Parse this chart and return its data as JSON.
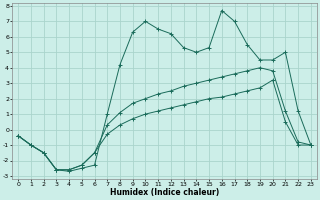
{
  "xlabel": "Humidex (Indice chaleur)",
  "bg_color": "#cceee8",
  "grid_color": "#aad4cc",
  "line_color": "#1a6b5a",
  "xlim": [
    -0.5,
    23.5
  ],
  "ylim": [
    -3.2,
    8.2
  ],
  "xticks": [
    0,
    1,
    2,
    3,
    4,
    5,
    6,
    7,
    8,
    9,
    10,
    11,
    12,
    13,
    14,
    15,
    16,
    17,
    18,
    19,
    20,
    21,
    22,
    23
  ],
  "yticks": [
    -3,
    -2,
    -1,
    0,
    1,
    2,
    3,
    4,
    5,
    6,
    7,
    8
  ],
  "s1_x": [
    0,
    1,
    2,
    3,
    4,
    5,
    6,
    7,
    8,
    9,
    10,
    11,
    12,
    13,
    14,
    15,
    16,
    17,
    18,
    19,
    20,
    21,
    22,
    23
  ],
  "s1_y": [
    -0.4,
    -1.0,
    -1.5,
    -2.6,
    -2.7,
    -2.5,
    -2.3,
    1.0,
    4.2,
    6.3,
    7.0,
    6.5,
    6.2,
    5.3,
    5.0,
    5.3,
    7.7,
    7.0,
    5.5,
    4.5,
    4.5,
    5.0,
    1.2,
    -1.0
  ],
  "s2_x": [
    0,
    1,
    2,
    3,
    4,
    5,
    6,
    7,
    8,
    9,
    10,
    11,
    12,
    13,
    14,
    15,
    16,
    17,
    18,
    19,
    20,
    21,
    22,
    23
  ],
  "s2_y": [
    -0.4,
    -1.0,
    -1.5,
    -2.6,
    -2.6,
    -2.3,
    -1.5,
    0.3,
    1.1,
    1.7,
    2.0,
    2.3,
    2.5,
    2.8,
    3.0,
    3.2,
    3.4,
    3.6,
    3.8,
    4.0,
    3.8,
    1.2,
    -0.8,
    -1.0
  ],
  "s3_x": [
    0,
    1,
    2,
    3,
    4,
    5,
    6,
    7,
    8,
    9,
    10,
    11,
    12,
    13,
    14,
    15,
    16,
    17,
    18,
    19,
    20,
    21,
    22,
    23
  ],
  "s3_y": [
    -0.4,
    -1.0,
    -1.5,
    -2.6,
    -2.6,
    -2.3,
    -1.5,
    -0.3,
    0.3,
    0.7,
    1.0,
    1.2,
    1.4,
    1.6,
    1.8,
    2.0,
    2.1,
    2.3,
    2.5,
    2.7,
    3.2,
    0.5,
    -1.0,
    -1.0
  ]
}
